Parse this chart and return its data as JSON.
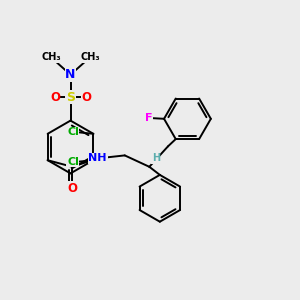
{
  "bg_color": "#ececec",
  "bond_color": "#000000",
  "bond_width": 1.4,
  "atom_colors": {
    "C": "#000000",
    "H": "#5cadad",
    "N": "#0000ff",
    "O": "#ff0000",
    "S": "#cccc00",
    "Cl": "#00aa00",
    "F": "#ff00ff"
  },
  "font_size": 7.5,
  "xlim": [
    0,
    10
  ],
  "ylim": [
    0,
    10
  ]
}
